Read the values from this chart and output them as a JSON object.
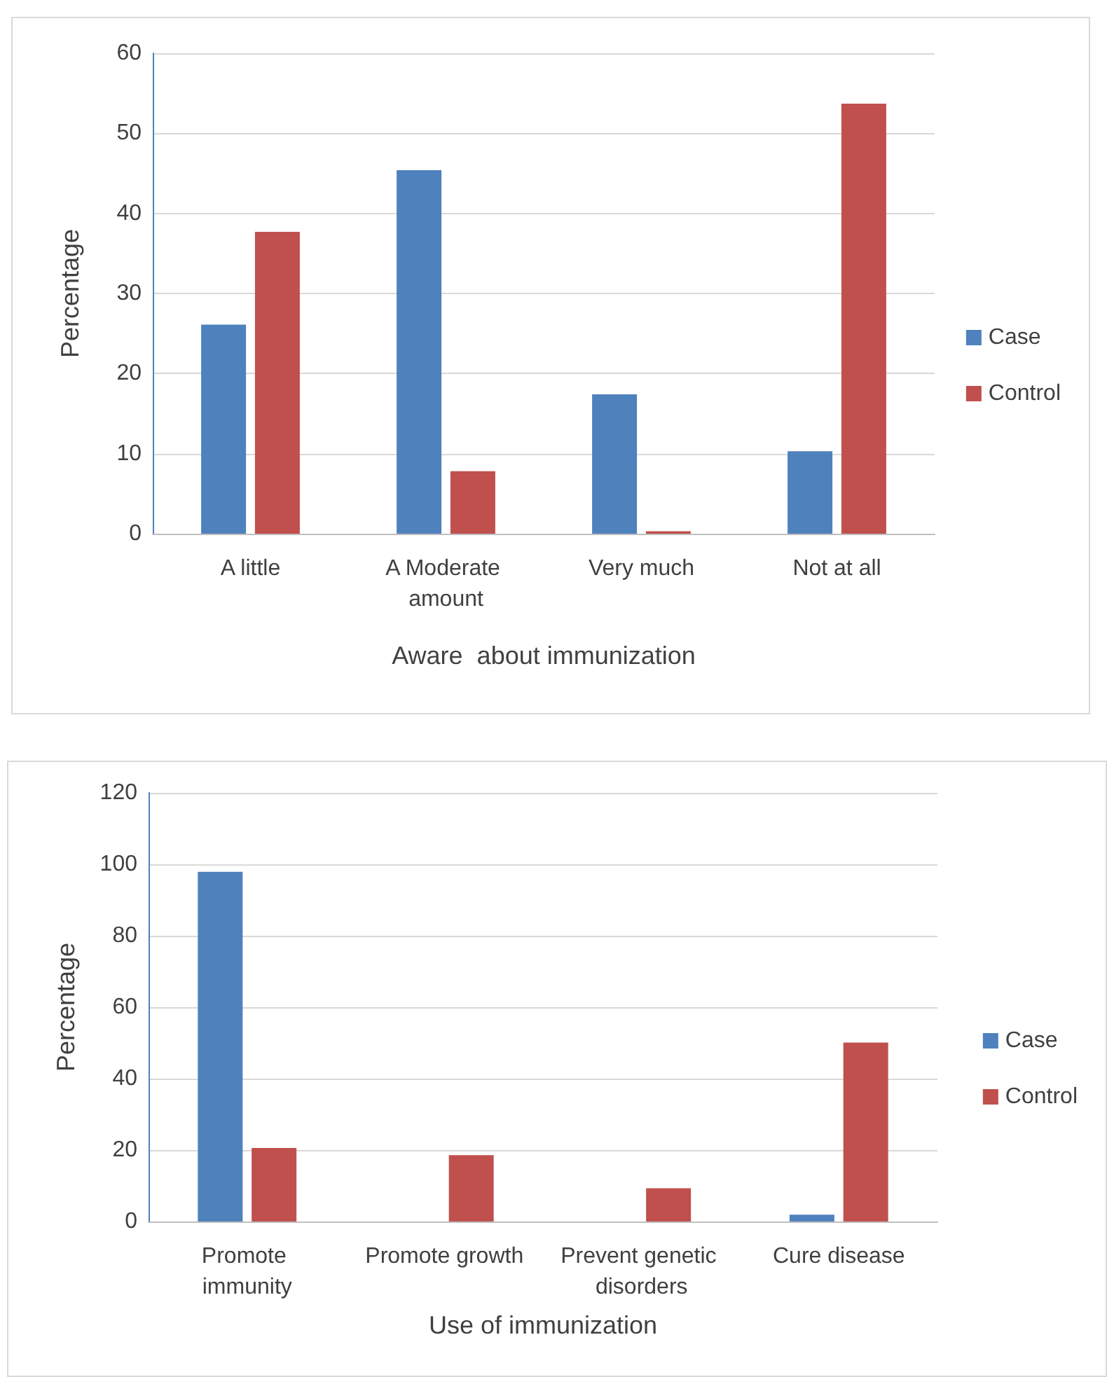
{
  "chart_data": [
    {
      "type": "bar",
      "categories": [
        "A little",
        "A Moderate amount",
        "Very much",
        "Not at all"
      ],
      "xlabel": "Aware  about immunization",
      "ylabel": "Percentage",
      "ylim": [
        0,
        60
      ],
      "yticks": [
        0,
        10,
        20,
        30,
        40,
        50,
        60
      ],
      "grid": "y",
      "legend": "right",
      "series": [
        {
          "name": "Case",
          "color": "#4f81bd",
          "values": [
            26.1,
            45.4,
            17.4,
            10.3
          ]
        },
        {
          "name": "Control",
          "color": "#c0504d",
          "values": [
            37.7,
            7.8,
            0.3,
            53.7
          ]
        }
      ]
    },
    {
      "type": "bar",
      "categories": [
        "Promote immunity",
        "Promote growth",
        "Prevent genetic disorders",
        "Cure disease"
      ],
      "xlabel": "Use of immunization",
      "ylabel": "Percentage",
      "ylim": [
        0,
        120
      ],
      "yticks": [
        0,
        20,
        40,
        60,
        80,
        100,
        120
      ],
      "grid": "y",
      "legend": "right",
      "series": [
        {
          "name": "Case",
          "color": "#4f81bd",
          "values": [
            97.9,
            0,
            0,
            1.9
          ]
        },
        {
          "name": "Control",
          "color": "#c0504d",
          "values": [
            20.6,
            18.6,
            9.3,
            50.1
          ]
        }
      ]
    }
  ]
}
